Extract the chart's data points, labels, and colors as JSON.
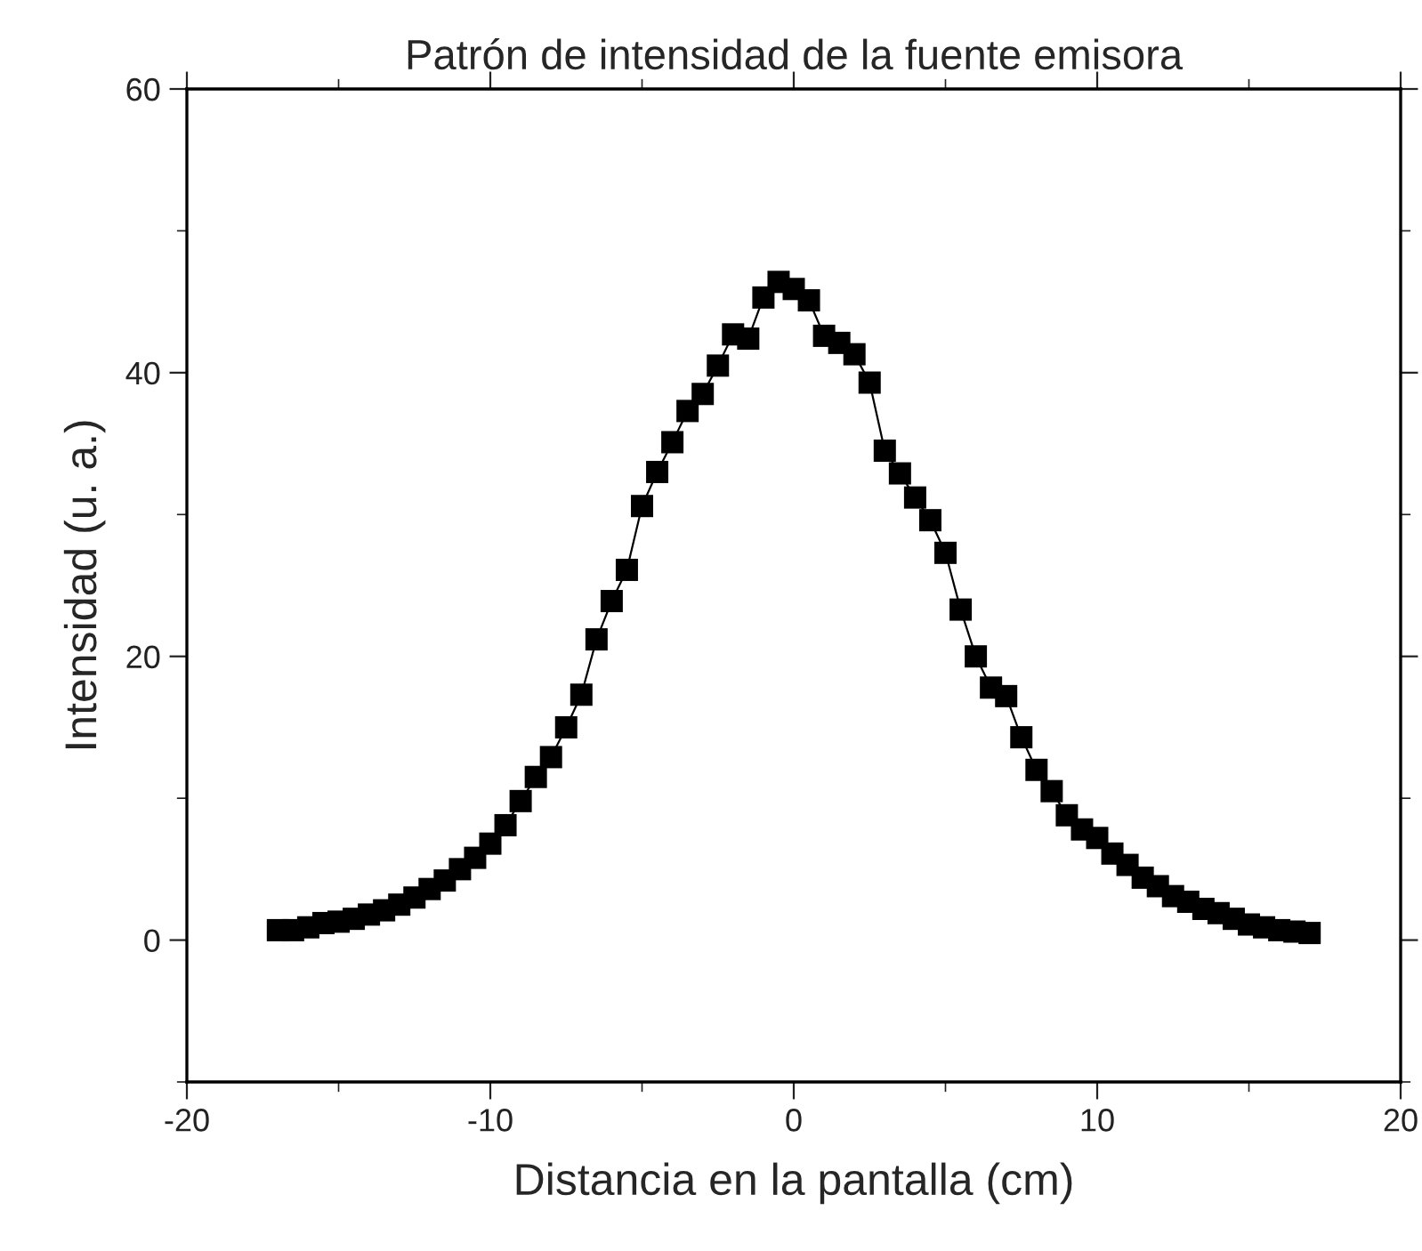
{
  "chart_data": {
    "type": "line",
    "title": "Patrón de intensidad de la fuente emisora",
    "xlabel": "Distancia en la pantalla (cm)",
    "ylabel": "Intensidad (u. a.)",
    "x": [
      -17,
      -16.5,
      -16,
      -15.5,
      -15,
      -14.5,
      -14,
      -13.5,
      -13,
      -12.5,
      -12,
      -11.5,
      -11,
      -10.5,
      -10,
      -9.5,
      -9,
      -8.5,
      -8,
      -7.5,
      -7,
      -6.5,
      -6,
      -5.5,
      -5,
      -4.5,
      -4,
      -3.5,
      -3,
      -2.5,
      -2,
      -1.5,
      -1,
      -0.5,
      0,
      0.5,
      1,
      1.5,
      2,
      2.5,
      3,
      3.5,
      4,
      4.5,
      5,
      5.5,
      6,
      6.5,
      7,
      7.5,
      8,
      8.5,
      9,
      9.5,
      10,
      10.5,
      11,
      11.5,
      12,
      12.5,
      13,
      13.5,
      14,
      14.5,
      15,
      15.5,
      16,
      16.5,
      17
    ],
    "series": [
      {
        "color": "#000000",
        "values": [
          0.7,
          0.7,
          0.9,
          1.2,
          1.3,
          1.5,
          1.8,
          2.1,
          2.5,
          3.0,
          3.6,
          4.2,
          5.0,
          5.8,
          6.8,
          8.1,
          9.8,
          11.5,
          12.9,
          15.0,
          17.3,
          21.2,
          23.9,
          26.1,
          30.6,
          33.0,
          35.1,
          37.3,
          38.5,
          40.5,
          42.7,
          42.4,
          45.3,
          46.4,
          45.9,
          45.1,
          42.6,
          42.1,
          41.3,
          39.3,
          34.5,
          32.9,
          31.2,
          29.6,
          27.3,
          23.3,
          20.0,
          17.8,
          17.2,
          14.3,
          12.0,
          10.5,
          8.8,
          7.8,
          7.2,
          6.1,
          5.3,
          4.4,
          3.8,
          3.1,
          2.7,
          2.2,
          1.9,
          1.5,
          1.1,
          0.9,
          0.7,
          0.6,
          0.5
        ]
      }
    ],
    "marker": "square",
    "line_style": "solid",
    "grid": false,
    "xlim": [
      -20,
      20
    ],
    "xticks": [
      -20,
      -10,
      0,
      10,
      20
    ],
    "ylim": [
      -10,
      60
    ],
    "yticks": [
      0,
      20,
      40,
      60
    ]
  }
}
